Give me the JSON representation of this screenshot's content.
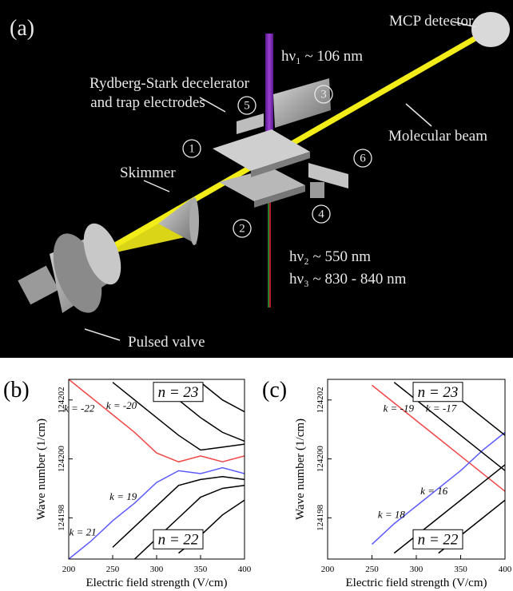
{
  "diagram": {
    "label": "(a)",
    "mcp": "MCP detector",
    "laser1": "hν₁ ~ 106 nm",
    "decelerator": [
      "Rydberg-Stark decelerator",
      "and trap electrodes"
    ],
    "beam": "Molecular beam",
    "skimmer": "Skimmer",
    "laser2": "hν₂ ~ 550 nm",
    "laser3": "hν₃ ~ 830 - 840 nm",
    "valve": "Pulsed valve",
    "electrodes": [
      "1",
      "2",
      "3",
      "4",
      "5",
      "6"
    ]
  },
  "chart_data": [
    {
      "type": "line",
      "label": "(b)",
      "ylabel": "Wave number (1/cm)",
      "xlabel": "Electric field strength (V/cm)",
      "xlim": [
        200,
        400
      ],
      "xticks": [
        200,
        250,
        300,
        350,
        400
      ],
      "ylim": [
        124196.6,
        124202.7
      ],
      "yticks": [
        124198,
        124200,
        124202
      ],
      "annotations": [
        "n = 23",
        "n = 22"
      ],
      "x": [
        200,
        225,
        250,
        275,
        300,
        325,
        350,
        375,
        400
      ],
      "series": [
        {
          "name": "k = -22",
          "color": "#f04848",
          "values": [
            124202.7,
            124202.1,
            124201.5,
            124200.9,
            124200.2,
            124199.9,
            124200.1,
            124199.9,
            124200.1
          ]
        },
        {
          "name": "k = 21",
          "color": "#5a5aff",
          "values": [
            124196.6,
            124197.2,
            124197.9,
            124198.5,
            124199.2,
            124199.6,
            124199.5,
            124199.7,
            124199.5
          ]
        },
        {
          "name": "k = -20",
          "color": "#000000",
          "values": [
            null,
            null,
            124202.6,
            124202.0,
            124201.4,
            124200.8,
            124200.3,
            124200.4,
            124200.5
          ]
        },
        {
          "color": "#000000",
          "values": [
            null,
            null,
            null,
            null,
            124202.6,
            124202.0,
            124201.4,
            124200.9,
            124200.6
          ]
        },
        {
          "color": "#000000",
          "values": [
            null,
            null,
            null,
            null,
            null,
            null,
            124202.6,
            124202.0,
            124201.6
          ]
        },
        {
          "name": "k = 19",
          "color": "#000000",
          "values": [
            null,
            null,
            124197.0,
            124197.7,
            124198.4,
            124199.1,
            124199.3,
            124199.4,
            124199.3
          ]
        },
        {
          "color": "#000000",
          "values": [
            null,
            null,
            null,
            124196.6,
            124197.3,
            124198.0,
            124198.7,
            124199.0,
            124199.1
          ]
        },
        {
          "color": "#000000",
          "values": [
            null,
            null,
            null,
            null,
            null,
            124196.8,
            124197.4,
            124198.1,
            124198.6
          ]
        }
      ]
    },
    {
      "type": "line",
      "label": "(c)",
      "ylabel": "Wave number (1/cm)",
      "xlabel": "Electric field strength (V/cm)",
      "xlim": [
        200,
        400
      ],
      "xticks": [
        200,
        250,
        300,
        350,
        400
      ],
      "ylim": [
        124196.6,
        124202.7
      ],
      "yticks": [
        124198,
        124200,
        124202
      ],
      "annotations": [
        "n = 23",
        "n = 22"
      ],
      "x": [
        200,
        225,
        250,
        275,
        300,
        325,
        350,
        375,
        400
      ],
      "series": [
        {
          "name": "k = -19",
          "color": "#f04848",
          "values": [
            null,
            null,
            124202.5,
            124201.9,
            124201.3,
            124200.7,
            124200.1,
            124199.5,
            124198.9
          ]
        },
        {
          "name": "k = 18",
          "color": "#5a5aff",
          "values": [
            null,
            null,
            124197.1,
            124197.8,
            124198.4,
            124199.0,
            124199.6,
            124200.3,
            124200.9
          ]
        },
        {
          "name": "k = -17",
          "color": "#000000",
          "values": [
            null,
            null,
            null,
            124202.6,
            124202.0,
            124201.4,
            124200.8,
            124200.2,
            124199.6
          ]
        },
        {
          "color": "#000000",
          "values": [
            null,
            null,
            null,
            null,
            null,
            124202.6,
            124202.0,
            124201.4,
            124200.8
          ]
        },
        {
          "name": "k = 16",
          "color": "#000000",
          "values": [
            null,
            null,
            null,
            124196.8,
            124197.4,
            124198.0,
            124198.6,
            124199.2,
            124199.8
          ]
        },
        {
          "color": "#000000",
          "values": [
            null,
            null,
            null,
            null,
            null,
            124196.8,
            124197.4,
            124198.0,
            124198.6
          ]
        }
      ]
    }
  ]
}
